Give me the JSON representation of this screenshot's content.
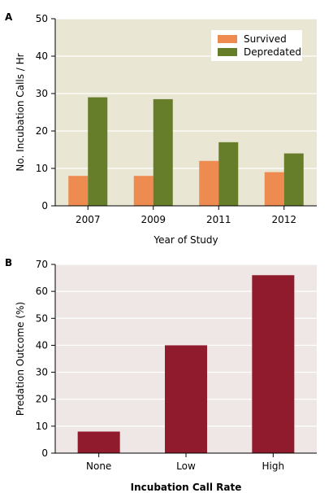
{
  "panels": {
    "a_label": "A",
    "b_label": "B"
  },
  "chart_data": [
    {
      "type": "bar",
      "xlabel": "Year of Study",
      "ylabel": "No. Incubation Calls / Hr",
      "ylim": [
        0,
        50
      ],
      "yticks": [
        "0",
        "10",
        "20",
        "30",
        "40",
        "50"
      ],
      "grid": true,
      "legend_position": "top-right",
      "categories": [
        "2007",
        "2009",
        "2011",
        "2012"
      ],
      "series": [
        {
          "name": "Survived",
          "values": [
            8,
            8,
            12,
            9
          ],
          "color": "#ee8b50"
        },
        {
          "name": "Depredated",
          "values": [
            29,
            28.5,
            17,
            14
          ],
          "color": "#667d2a"
        }
      ],
      "background": "#e9e6d3",
      "gridline_color": "#ffffff"
    },
    {
      "type": "bar",
      "xlabel": "Incubation Call Rate",
      "ylabel": "Predation Outcome (%)",
      "ylim": [
        0,
        70
      ],
      "yticks": [
        "0",
        "10",
        "20",
        "30",
        "40",
        "50",
        "60",
        "70"
      ],
      "grid": true,
      "categories": [
        "None",
        "Low",
        "High"
      ],
      "series": [
        {
          "values": [
            8,
            40,
            66
          ],
          "color": "#8f1b2c"
        }
      ],
      "background": "#efe7e6",
      "gridline_color": "#ffffff"
    }
  ]
}
